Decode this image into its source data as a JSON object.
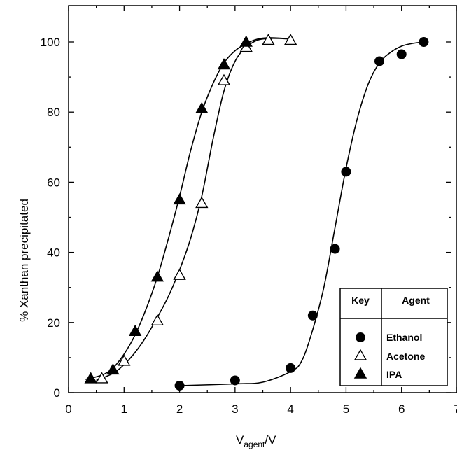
{
  "chart_data": {
    "type": "scatter",
    "ylabel": "% Xanthan precipitated",
    "xlabel_main": "V",
    "xlabel_sub": "agent",
    "xlabel_tail": "/V",
    "xlim": [
      0,
      7
    ],
    "ylim": [
      0,
      100
    ],
    "x_ticks": [
      "0",
      "1",
      "2",
      "3",
      "4",
      "5",
      "6",
      "7"
    ],
    "y_ticks": [
      "0",
      "20",
      "40",
      "60",
      "80",
      "100"
    ],
    "grid": false,
    "legend": {
      "position": "bottom-right",
      "header_key": "Key",
      "header_agent": "Agent"
    },
    "series": [
      {
        "name": "Ethanol",
        "marker": "filled-circle",
        "x": [
          2.0,
          3.0,
          4.0,
          4.4,
          4.8,
          5.0,
          5.6,
          6.0,
          6.4
        ],
        "y": [
          2,
          3.5,
          7,
          22,
          41,
          63,
          94.5,
          96.5,
          100
        ]
      },
      {
        "name": "Acetone",
        "marker": "open-triangle",
        "x": [
          0.6,
          1.0,
          1.6,
          2.0,
          2.4,
          2.8,
          3.2,
          3.6,
          4.0
        ],
        "y": [
          4,
          9,
          20.5,
          33.5,
          54,
          89,
          98.5,
          100.5,
          100.5
        ]
      },
      {
        "name": "IPA",
        "marker": "filled-triangle",
        "x": [
          0.4,
          0.8,
          1.2,
          1.6,
          2.0,
          2.4,
          2.8,
          3.2
        ],
        "y": [
          4,
          6.5,
          17.5,
          33,
          55,
          81,
          93.5,
          100
        ]
      }
    ],
    "fit_curves": [
      {
        "for": "Ethanol",
        "x": [
          2.0,
          3.0,
          3.5,
          4.0,
          4.2,
          4.4,
          4.6,
          4.8,
          5.0,
          5.2,
          5.4,
          5.6,
          5.8,
          6.0,
          6.2,
          6.4
        ],
        "y": [
          2,
          2.5,
          3,
          6,
          9,
          18,
          30,
          47,
          64,
          78,
          88,
          94,
          97,
          98.8,
          99.6,
          100
        ]
      },
      {
        "for": "Acetone",
        "x": [
          0.5,
          0.8,
          1.0,
          1.2,
          1.4,
          1.6,
          1.8,
          2.0,
          2.2,
          2.4,
          2.6,
          2.8,
          3.0,
          3.2,
          3.4,
          3.6,
          3.8,
          4.0
        ],
        "y": [
          3.5,
          5.5,
          8,
          11.5,
          16,
          21.5,
          27.5,
          35,
          44,
          56,
          72,
          86,
          94.5,
          98.5,
          100.5,
          101,
          101,
          100.8
        ]
      },
      {
        "for": "IPA",
        "x": [
          0.3,
          0.6,
          0.8,
          1.0,
          1.2,
          1.4,
          1.6,
          1.8,
          2.0,
          2.2,
          2.4,
          2.6,
          2.8,
          3.0,
          3.2,
          3.4,
          3.6,
          3.9
        ],
        "y": [
          3.8,
          5,
          7,
          11,
          16.5,
          24,
          33,
          44,
          56,
          69,
          80,
          88,
          94,
          97.5,
          99.5,
          100.8,
          101.2,
          101
        ]
      }
    ]
  }
}
